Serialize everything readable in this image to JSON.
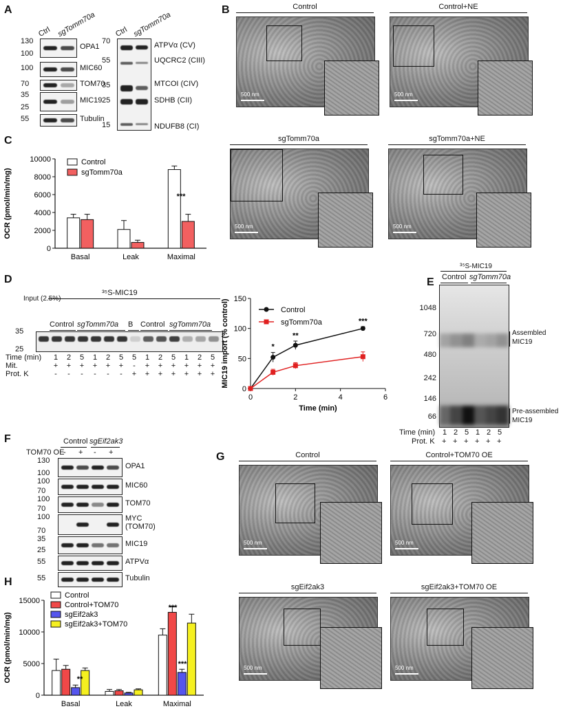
{
  "panels": {
    "A": "A",
    "B": "B",
    "C": "C",
    "D": "D",
    "E": "E",
    "F": "F",
    "G": "G",
    "H": "H"
  },
  "panelA": {
    "col_ctrl": "Ctrl",
    "col_sg": "sgTomm70a",
    "left_rows": [
      {
        "label": "OPA1",
        "mw": [
          "130",
          "100"
        ]
      },
      {
        "label": "MIC60",
        "mw": [
          "100"
        ]
      },
      {
        "label": "TOM70",
        "mw": [
          "70"
        ]
      },
      {
        "label": "MIC19",
        "mw": [
          "35",
          "25"
        ]
      },
      {
        "label": "Tubulin",
        "mw": [
          "55"
        ]
      }
    ],
    "right_labels": [
      "ATPVα (CV)",
      "UQCRC2 (CIII)",
      "MTCOI (CIV)",
      "SDHB (CII)",
      "NDUFB8 (CI)"
    ],
    "right_mw": [
      "70",
      "55",
      "35",
      "25",
      "15"
    ]
  },
  "panelB": {
    "titles": [
      "Control",
      "Control+NE",
      "sgTomm70a",
      "sgTomm70a+NE"
    ],
    "scale": "500 nm"
  },
  "panelC": {
    "legend": [
      "Control",
      "sgTomm70a"
    ],
    "ylabel": "OCR (pmol/min/mg)",
    "yticks": [
      "0",
      "2000",
      "4000",
      "6000",
      "8000",
      "10000"
    ],
    "categories": [
      "Basal",
      "Leak",
      "Maximal"
    ],
    "sig": "***",
    "colors": {
      "control": "#ffffff",
      "sg": "#f26060"
    }
  },
  "panelD": {
    "blot_title": "³⁵S-MIC19",
    "input": "Input (2.5%)",
    "groups": [
      "Control",
      "sgTomm70a",
      "B",
      "Control",
      "sgTomm70a"
    ],
    "mw": [
      "35",
      "25"
    ],
    "time_label": "Time (min)",
    "time_vals": [
      "1",
      "2",
      "5",
      "1",
      "2",
      "5",
      "5",
      "1",
      "2",
      "5",
      "1",
      "2",
      "5"
    ],
    "mit_label": "Mit.",
    "mit_vals": [
      "+",
      "+",
      "+",
      "+",
      "+",
      "+",
      "-",
      "+",
      "+",
      "+",
      "+",
      "+",
      "+"
    ],
    "prot_label": "Prot. K",
    "prot_vals": [
      "-",
      "-",
      "-",
      "-",
      "-",
      "-",
      "+",
      "+",
      "+",
      "+",
      "+",
      "+",
      "+"
    ],
    "legend": [
      "Control",
      "sgTomm70a"
    ],
    "ylabel": "MIC19 import (% control)",
    "xlabel": "Time (min)",
    "yticks": [
      "0",
      "50",
      "100",
      "150"
    ],
    "xticks": [
      "0",
      "2",
      "4",
      "6"
    ],
    "sig": [
      "*",
      "**",
      "***"
    ]
  },
  "panelE": {
    "title": "³⁵S-MIC19",
    "groups": [
      "Control",
      "sgTomm70a"
    ],
    "mw": [
      "1048",
      "720",
      "480",
      "242",
      "146",
      "66"
    ],
    "assembled": "Assembled MIC19",
    "preassembled": "Pre-assembled MIC19",
    "time_label": "Time (min)",
    "time_vals": [
      "1",
      "2",
      "5",
      "1",
      "2",
      "5"
    ],
    "prot_label": "Prot. K",
    "prot_vals": [
      "+",
      "+",
      "+",
      "+",
      "+",
      "+"
    ]
  },
  "panelF": {
    "groups": [
      "Control",
      "sgEif2ak3"
    ],
    "oe_label": "TOM70 OE",
    "oe_vals": [
      "-",
      "+",
      "-",
      "+"
    ],
    "rows": [
      {
        "label": "OPA1",
        "mw": [
          "130",
          "100"
        ]
      },
      {
        "label": "MIC60",
        "mw": [
          "100",
          "70"
        ]
      },
      {
        "label": "TOM70",
        "mw": [
          "100",
          "70"
        ]
      },
      {
        "label": "MYC (TOM70)",
        "mw": [
          "100",
          "70"
        ]
      },
      {
        "label": "MIC19",
        "mw": [
          "35",
          "25"
        ]
      },
      {
        "label": "ATPVα",
        "mw": [
          "55"
        ]
      },
      {
        "label": "Tubulin",
        "mw": [
          "55"
        ]
      }
    ]
  },
  "panelG": {
    "titles": [
      "Control",
      "Control+TOM70 OE",
      "sgEif2ak3",
      "sgEif2ak3+TOM70 OE"
    ],
    "scale": "500 nm"
  },
  "panelH": {
    "legend": [
      "Control",
      "Control+TOM70",
      "sgEif2ak3",
      "sgEif2ak3+TOM70"
    ],
    "ylabel": "OCR (pmol/min/mg)",
    "yticks": [
      "0",
      "5000",
      "10000",
      "15000"
    ],
    "categories": [
      "Basal",
      "Leak",
      "Maximal"
    ],
    "sig": [
      "**",
      "***",
      "***"
    ],
    "colors": [
      "#ffffff",
      "#f04848",
      "#5555ee",
      "#f5f020"
    ]
  },
  "chart_data": [
    {
      "type": "bar",
      "title": "",
      "ylabel": "OCR (pmol/min/mg)",
      "categories": [
        "Basal",
        "Leak",
        "Maximal"
      ],
      "ylim": [
        0,
        10000
      ],
      "series": [
        {
          "name": "Control",
          "values": [
            3400,
            2100,
            8800
          ],
          "errors": [
            400,
            1000,
            400
          ]
        },
        {
          "name": "sgTomm70a",
          "values": [
            3200,
            650,
            3000
          ],
          "errors": [
            600,
            250,
            800
          ]
        }
      ]
    },
    {
      "type": "line",
      "title": "",
      "xlabel": "Time (min)",
      "ylabel": "MIC19 import (% control)",
      "xlim": [
        0,
        6
      ],
      "ylim": [
        0,
        150
      ],
      "series": [
        {
          "name": "Control",
          "x": [
            0,
            1,
            2,
            5
          ],
          "values": [
            0,
            52,
            72,
            100
          ],
          "errors": [
            0,
            8,
            7,
            3
          ]
        },
        {
          "name": "sgTomm70a",
          "x": [
            0,
            1,
            2,
            5
          ],
          "values": [
            0,
            27,
            38,
            53
          ],
          "errors": [
            0,
            5,
            5,
            8
          ]
        }
      ]
    },
    {
      "type": "bar",
      "title": "",
      "ylabel": "OCR (pmol/min/mg)",
      "categories": [
        "Basal",
        "Leak",
        "Maximal"
      ],
      "ylim": [
        0,
        15000
      ],
      "series": [
        {
          "name": "Control",
          "values": [
            3900,
            600,
            9500
          ],
          "errors": [
            1800,
            300,
            1000
          ]
        },
        {
          "name": "Control+TOM70",
          "values": [
            4100,
            700,
            13100
          ],
          "errors": [
            600,
            200,
            900
          ]
        },
        {
          "name": "sgEif2ak3",
          "values": [
            1200,
            350,
            3600
          ],
          "errors": [
            400,
            100,
            500
          ]
        },
        {
          "name": "sgEif2ak3+TOM70",
          "values": [
            3900,
            850,
            11400
          ],
          "errors": [
            400,
            150,
            1400
          ]
        }
      ]
    }
  ]
}
